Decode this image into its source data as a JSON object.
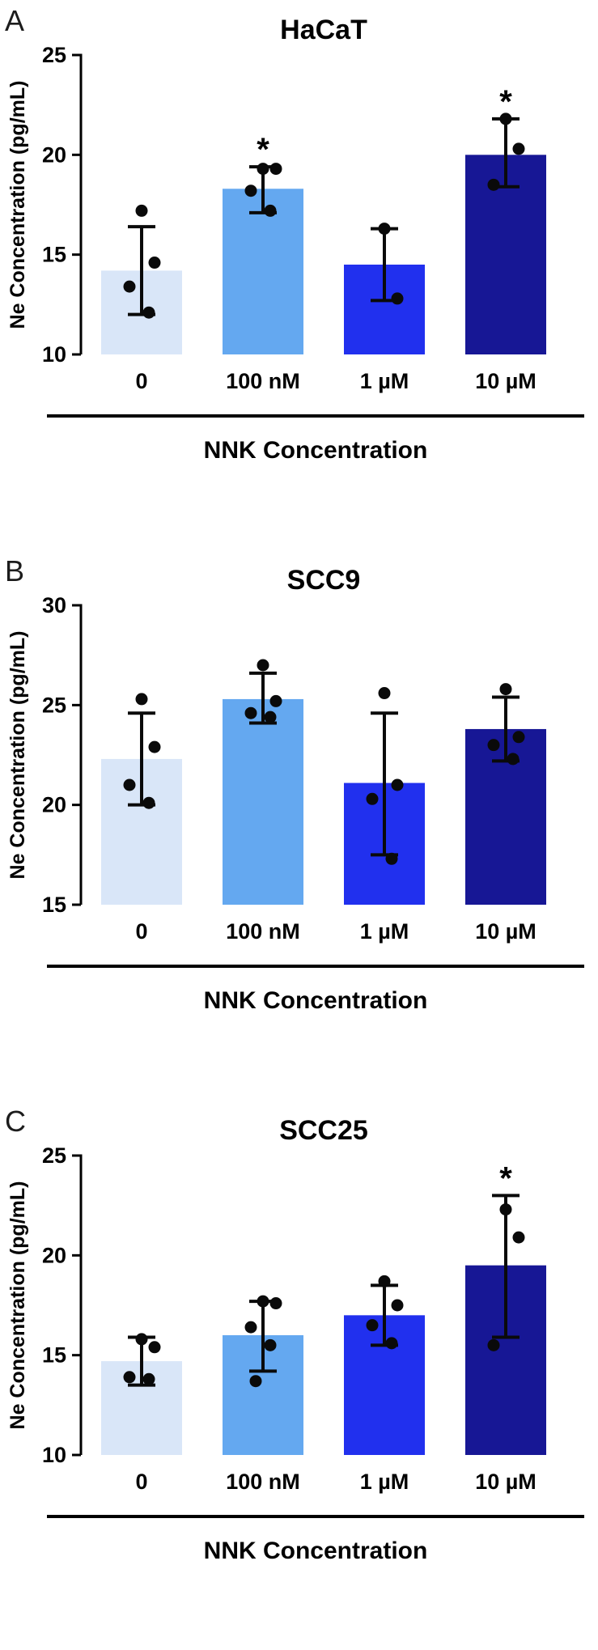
{
  "figure": {
    "bar_colors": [
      "#d9e6f8",
      "#64a8f0",
      "#2130ee",
      "#171795"
    ],
    "point_color": "#0a0a0a",
    "error_color": "#0a0a0a",
    "axis_color": "#000000",
    "significance_symbol": "*"
  },
  "chart_data": [
    {
      "type": "bar",
      "panel_label": "A",
      "title": "HaCaT",
      "xlabel": "NNK Concentration",
      "ylabel": "Ne Concentration (pg/mL)",
      "ylim": [
        10,
        25
      ],
      "yticks": [
        10,
        15,
        20,
        25
      ],
      "categories": [
        "0",
        "100 nM",
        "1 µM",
        "10 µM"
      ],
      "values": [
        14.2,
        18.3,
        14.5,
        20.0
      ],
      "error_low": [
        12.0,
        17.1,
        12.7,
        18.4
      ],
      "error_high": [
        16.4,
        19.4,
        16.3,
        21.8
      ],
      "significant": [
        false,
        true,
        false,
        true
      ],
      "points": [
        [
          17.2,
          14.6,
          13.4,
          12.1
        ],
        [
          19.3,
          19.3,
          18.2,
          17.2
        ],
        [
          16.3,
          12.8
        ],
        [
          21.8,
          20.3,
          18.5
        ]
      ],
      "grid": false,
      "legend": null
    },
    {
      "type": "bar",
      "panel_label": "B",
      "title": "SCC9",
      "xlabel": "NNK Concentration",
      "ylabel": "Ne Concentration (pg/mL)",
      "ylim": [
        15,
        30
      ],
      "yticks": [
        15,
        20,
        25,
        30
      ],
      "categories": [
        "0",
        "100 nM",
        "1 µM",
        "10 µM"
      ],
      "values": [
        22.3,
        25.3,
        21.1,
        23.8
      ],
      "error_low": [
        20.0,
        24.1,
        17.5,
        22.2
      ],
      "error_high": [
        24.6,
        26.6,
        24.6,
        25.4
      ],
      "significant": [
        false,
        false,
        false,
        false
      ],
      "points": [
        [
          25.3,
          22.9,
          21.0,
          20.1
        ],
        [
          27.0,
          25.2,
          24.6,
          24.4
        ],
        [
          25.6,
          21.0,
          20.3,
          17.3
        ],
        [
          25.8,
          23.4,
          23.0,
          22.3
        ]
      ],
      "grid": false,
      "legend": null
    },
    {
      "type": "bar",
      "panel_label": "C",
      "title": "SCC25",
      "xlabel": "NNK Concentration",
      "ylabel": "Ne Concentration (pg/mL)",
      "ylim": [
        10,
        25
      ],
      "yticks": [
        10,
        15,
        20,
        25
      ],
      "categories": [
        "0",
        "100 nM",
        "1 µM",
        "10 µM"
      ],
      "values": [
        14.7,
        16.0,
        17.0,
        19.5
      ],
      "error_low": [
        13.5,
        14.2,
        15.5,
        15.9
      ],
      "error_high": [
        15.9,
        17.7,
        18.5,
        23.0
      ],
      "significant": [
        false,
        false,
        false,
        true
      ],
      "points": [
        [
          15.8,
          15.4,
          13.9,
          13.8
        ],
        [
          17.7,
          17.6,
          16.4,
          15.5,
          13.7
        ],
        [
          18.7,
          17.5,
          16.5,
          15.6
        ],
        [
          22.3,
          20.9,
          15.5
        ]
      ],
      "grid": false,
      "legend": null
    }
  ]
}
